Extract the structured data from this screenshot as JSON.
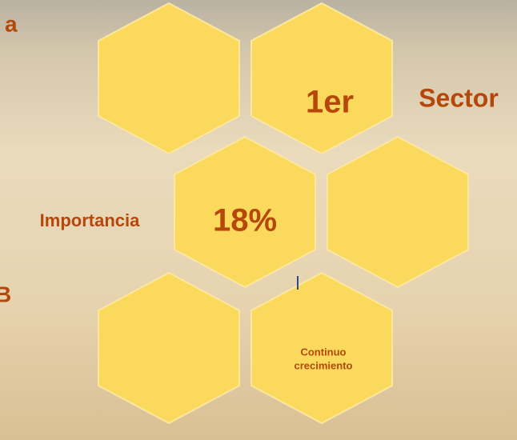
{
  "side_labels": [
    "a",
    "Sector",
    "Importancia",
    "B"
  ],
  "hexagon_labels": {
    "first": "1er",
    "share": "18%",
    "growth": [
      "Continuo",
      "crecimiento"
    ]
  }
}
